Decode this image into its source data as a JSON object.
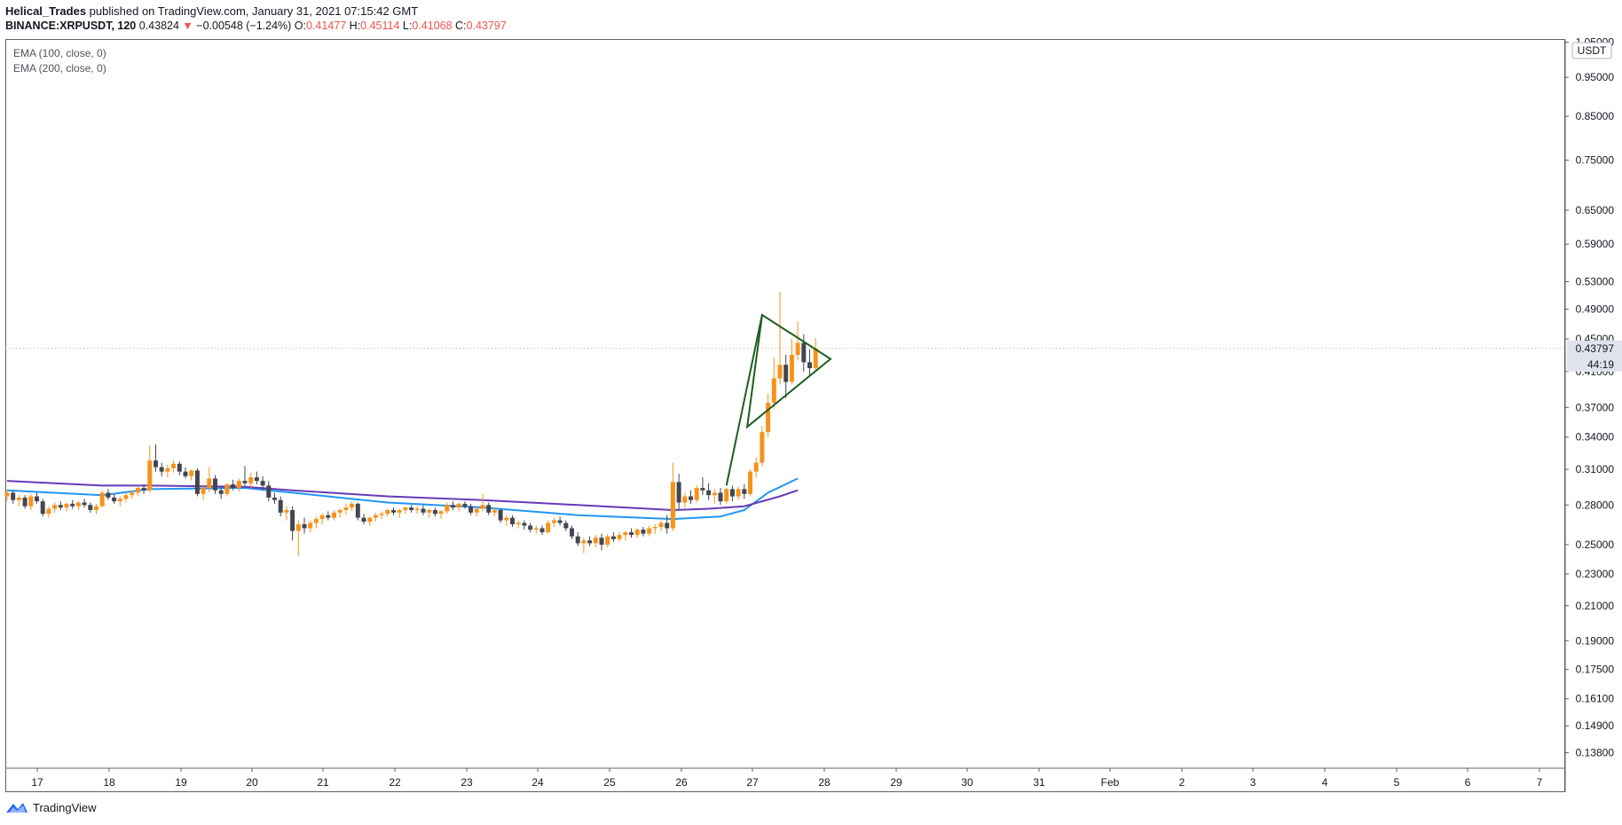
{
  "header": {
    "author": "Helical_Trades",
    "published": " published on TradingView.com, January 31, 2021 07:15:42 GMT",
    "symbol": "BINANCE:XRPUSDT, 120",
    "last": "0.43824",
    "arrow": "▼",
    "change": "−0.00548 (−1.24%)",
    "o_label": "O:",
    "o": "0.41477",
    "h_label": "H:",
    "h": "0.45114",
    "l_label": "L:",
    "l": "0.41068",
    "c_label": "C:",
    "c": "0.43797"
  },
  "legend": [
    "EMA (100, close, 0)",
    "EMA (200, close, 0)"
  ],
  "currency_label": "USDT",
  "last_price_label": "0.43797",
  "countdown_label": "44:19",
  "footer": {
    "brand": "TradingView",
    "logo_icon": "tradingview-logo-icon"
  },
  "colors": {
    "up": "#f7931a",
    "down": "#434651",
    "ema100": "#2196f3",
    "ema200": "#673ab7",
    "pattern": "#1b5e20",
    "down_text": "#ef5350"
  },
  "chart_data": {
    "type": "candlestick",
    "title": "",
    "ylabel": "USDT",
    "yscale": "log",
    "ylim": [
      0.132,
      1.06
    ],
    "y_ticks": [
      "1.05000",
      "0.95000",
      "0.85000",
      "0.75000",
      "0.65000",
      "0.59000",
      "0.53000",
      "0.49000",
      "0.45000",
      "0.41000",
      "0.37000",
      "0.34000",
      "0.31000",
      "0.28000",
      "0.25000",
      "0.23000",
      "0.21000",
      "0.19000",
      "0.17500",
      "0.16100",
      "0.14900",
      "0.13800"
    ],
    "x_ticks": [
      "17",
      "18",
      "19",
      "20",
      "21",
      "22",
      "23",
      "24",
      "25",
      "26",
      "27",
      "28",
      "29",
      "30",
      "31",
      "Feb",
      "2",
      "3",
      "4",
      "5",
      "6",
      "7"
    ],
    "interval_minutes": 120,
    "first_candle": "2021-01-16",
    "candles": [
      [
        0.287,
        0.293,
        0.283,
        0.29
      ],
      [
        0.29,
        0.292,
        0.281,
        0.284
      ],
      [
        0.284,
        0.288,
        0.279,
        0.286
      ],
      [
        0.286,
        0.288,
        0.277,
        0.279
      ],
      [
        0.279,
        0.289,
        0.276,
        0.287
      ],
      [
        0.287,
        0.29,
        0.281,
        0.283
      ],
      [
        0.283,
        0.285,
        0.271,
        0.273
      ],
      [
        0.273,
        0.279,
        0.27,
        0.277
      ],
      [
        0.277,
        0.282,
        0.274,
        0.28
      ],
      [
        0.28,
        0.283,
        0.276,
        0.278
      ],
      [
        0.278,
        0.282,
        0.275,
        0.281
      ],
      [
        0.281,
        0.284,
        0.277,
        0.279
      ],
      [
        0.279,
        0.283,
        0.276,
        0.282
      ],
      [
        0.282,
        0.285,
        0.278,
        0.28
      ],
      [
        0.28,
        0.282,
        0.274,
        0.276
      ],
      [
        0.276,
        0.281,
        0.273,
        0.279
      ],
      [
        0.279,
        0.292,
        0.278,
        0.29
      ],
      [
        0.29,
        0.293,
        0.284,
        0.286
      ],
      [
        0.286,
        0.289,
        0.281,
        0.283
      ],
      [
        0.283,
        0.287,
        0.279,
        0.285
      ],
      [
        0.285,
        0.29,
        0.282,
        0.288
      ],
      [
        0.288,
        0.292,
        0.285,
        0.29
      ],
      [
        0.29,
        0.296,
        0.287,
        0.294
      ],
      [
        0.294,
        0.297,
        0.289,
        0.292
      ],
      [
        0.292,
        0.332,
        0.29,
        0.318
      ],
      [
        0.318,
        0.333,
        0.308,
        0.312
      ],
      [
        0.312,
        0.316,
        0.304,
        0.308
      ],
      [
        0.308,
        0.314,
        0.303,
        0.311
      ],
      [
        0.311,
        0.318,
        0.307,
        0.315
      ],
      [
        0.315,
        0.317,
        0.305,
        0.308
      ],
      [
        0.308,
        0.312,
        0.302,
        0.304
      ],
      [
        0.304,
        0.31,
        0.3,
        0.309
      ],
      [
        0.309,
        0.311,
        0.287,
        0.289
      ],
      [
        0.289,
        0.297,
        0.284,
        0.294
      ],
      [
        0.294,
        0.312,
        0.29,
        0.302
      ],
      [
        0.302,
        0.305,
        0.289,
        0.292
      ],
      [
        0.292,
        0.296,
        0.285,
        0.289
      ],
      [
        0.289,
        0.298,
        0.287,
        0.297
      ],
      [
        0.297,
        0.301,
        0.292,
        0.294
      ],
      [
        0.294,
        0.302,
        0.291,
        0.3
      ],
      [
        0.3,
        0.313,
        0.296,
        0.298
      ],
      [
        0.298,
        0.307,
        0.294,
        0.303
      ],
      [
        0.303,
        0.308,
        0.297,
        0.3
      ],
      [
        0.3,
        0.304,
        0.292,
        0.296
      ],
      [
        0.296,
        0.3,
        0.283,
        0.286
      ],
      [
        0.286,
        0.29,
        0.281,
        0.284
      ],
      [
        0.284,
        0.287,
        0.271,
        0.274
      ],
      [
        0.274,
        0.279,
        0.268,
        0.276
      ],
      [
        0.276,
        0.279,
        0.253,
        0.26
      ],
      [
        0.26,
        0.268,
        0.242,
        0.265
      ],
      [
        0.265,
        0.27,
        0.258,
        0.262
      ],
      [
        0.262,
        0.268,
        0.259,
        0.266
      ],
      [
        0.266,
        0.271,
        0.262,
        0.269
      ],
      [
        0.269,
        0.273,
        0.265,
        0.272
      ],
      [
        0.272,
        0.275,
        0.268,
        0.27
      ],
      [
        0.27,
        0.276,
        0.268,
        0.274
      ],
      [
        0.274,
        0.277,
        0.27,
        0.276
      ],
      [
        0.276,
        0.281,
        0.272,
        0.278
      ],
      [
        0.278,
        0.283,
        0.275,
        0.281
      ],
      [
        0.281,
        0.282,
        0.268,
        0.27
      ],
      [
        0.27,
        0.273,
        0.265,
        0.267
      ],
      [
        0.267,
        0.271,
        0.264,
        0.27
      ],
      [
        0.27,
        0.274,
        0.267,
        0.272
      ],
      [
        0.272,
        0.275,
        0.269,
        0.273
      ],
      [
        0.273,
        0.277,
        0.271,
        0.276
      ],
      [
        0.276,
        0.278,
        0.272,
        0.274
      ],
      [
        0.274,
        0.277,
        0.27,
        0.276
      ],
      [
        0.276,
        0.279,
        0.273,
        0.278
      ],
      [
        0.278,
        0.28,
        0.274,
        0.276
      ],
      [
        0.276,
        0.279,
        0.273,
        0.277
      ],
      [
        0.277,
        0.28,
        0.272,
        0.274
      ],
      [
        0.274,
        0.277,
        0.27,
        0.276
      ],
      [
        0.276,
        0.278,
        0.271,
        0.273
      ],
      [
        0.273,
        0.276,
        0.269,
        0.275
      ],
      [
        0.275,
        0.282,
        0.273,
        0.28
      ],
      [
        0.28,
        0.283,
        0.276,
        0.278
      ],
      [
        0.278,
        0.282,
        0.275,
        0.281
      ],
      [
        0.281,
        0.283,
        0.277,
        0.279
      ],
      [
        0.279,
        0.281,
        0.272,
        0.274
      ],
      [
        0.274,
        0.278,
        0.271,
        0.277
      ],
      [
        0.277,
        0.289,
        0.275,
        0.28
      ],
      [
        0.28,
        0.282,
        0.272,
        0.274
      ],
      [
        0.274,
        0.278,
        0.271,
        0.276
      ],
      [
        0.276,
        0.277,
        0.266,
        0.268
      ],
      [
        0.268,
        0.272,
        0.264,
        0.27
      ],
      [
        0.27,
        0.272,
        0.263,
        0.265
      ],
      [
        0.265,
        0.268,
        0.262,
        0.266
      ],
      [
        0.266,
        0.268,
        0.261,
        0.264
      ],
      [
        0.264,
        0.266,
        0.259,
        0.261
      ],
      [
        0.261,
        0.264,
        0.258,
        0.262
      ],
      [
        0.262,
        0.264,
        0.257,
        0.259
      ],
      [
        0.259,
        0.268,
        0.258,
        0.266
      ],
      [
        0.266,
        0.27,
        0.263,
        0.268
      ],
      [
        0.268,
        0.271,
        0.264,
        0.266
      ],
      [
        0.266,
        0.268,
        0.26,
        0.262
      ],
      [
        0.262,
        0.264,
        0.254,
        0.256
      ],
      [
        0.256,
        0.259,
        0.249,
        0.251
      ],
      [
        0.251,
        0.255,
        0.244,
        0.253
      ],
      [
        0.253,
        0.256,
        0.249,
        0.251
      ],
      [
        0.251,
        0.257,
        0.248,
        0.255
      ],
      [
        0.255,
        0.258,
        0.246,
        0.25
      ],
      [
        0.25,
        0.258,
        0.248,
        0.256
      ],
      [
        0.256,
        0.259,
        0.252,
        0.254
      ],
      [
        0.254,
        0.259,
        0.252,
        0.257
      ],
      [
        0.257,
        0.26,
        0.253,
        0.259
      ],
      [
        0.259,
        0.262,
        0.255,
        0.257
      ],
      [
        0.257,
        0.262,
        0.255,
        0.261
      ],
      [
        0.261,
        0.263,
        0.256,
        0.258
      ],
      [
        0.258,
        0.264,
        0.256,
        0.262
      ],
      [
        0.262,
        0.265,
        0.258,
        0.263
      ],
      [
        0.263,
        0.268,
        0.26,
        0.266
      ],
      [
        0.266,
        0.272,
        0.258,
        0.262
      ],
      [
        0.262,
        0.316,
        0.26,
        0.299
      ],
      [
        0.299,
        0.306,
        0.276,
        0.282
      ],
      [
        0.282,
        0.29,
        0.278,
        0.287
      ],
      [
        0.287,
        0.292,
        0.281,
        0.284
      ],
      [
        0.284,
        0.296,
        0.282,
        0.294
      ],
      [
        0.294,
        0.303,
        0.288,
        0.292
      ],
      [
        0.292,
        0.298,
        0.284,
        0.288
      ],
      [
        0.288,
        0.293,
        0.281,
        0.29
      ],
      [
        0.29,
        0.294,
        0.28,
        0.283
      ],
      [
        0.283,
        0.294,
        0.281,
        0.293
      ],
      [
        0.293,
        0.296,
        0.283,
        0.287
      ],
      [
        0.287,
        0.295,
        0.284,
        0.293
      ],
      [
        0.293,
        0.297,
        0.285,
        0.289
      ],
      [
        0.289,
        0.31,
        0.287,
        0.308
      ],
      [
        0.308,
        0.321,
        0.303,
        0.316
      ],
      [
        0.316,
        0.351,
        0.313,
        0.345
      ],
      [
        0.345,
        0.385,
        0.34,
        0.375
      ],
      [
        0.375,
        0.427,
        0.368,
        0.402
      ],
      [
        0.402,
        0.515,
        0.395,
        0.418
      ],
      [
        0.418,
        0.43,
        0.38,
        0.398
      ],
      [
        0.398,
        0.45,
        0.395,
        0.43
      ],
      [
        0.43,
        0.473,
        0.423,
        0.445
      ],
      [
        0.445,
        0.456,
        0.41,
        0.421
      ],
      [
        0.421,
        0.437,
        0.405,
        0.414
      ],
      [
        0.414,
        0.451,
        0.41,
        0.438
      ]
    ],
    "series": [
      {
        "name": "EMA (100, close, 0)",
        "points": [
          [
            0,
            0.292
          ],
          [
            16,
            0.288
          ],
          [
            24,
            0.293
          ],
          [
            40,
            0.294
          ],
          [
            48,
            0.29
          ],
          [
            64,
            0.282
          ],
          [
            80,
            0.278
          ],
          [
            96,
            0.272
          ],
          [
            112,
            0.269
          ],
          [
            120,
            0.271
          ],
          [
            124,
            0.276
          ],
          [
            128,
            0.29
          ],
          [
            133,
            0.302
          ]
        ]
      },
      {
        "name": "EMA (200, close, 0)",
        "points": [
          [
            0,
            0.3
          ],
          [
            16,
            0.296
          ],
          [
            24,
            0.296
          ],
          [
            40,
            0.295
          ],
          [
            48,
            0.292
          ],
          [
            64,
            0.287
          ],
          [
            80,
            0.284
          ],
          [
            96,
            0.28
          ],
          [
            112,
            0.276
          ],
          [
            118,
            0.277
          ],
          [
            124,
            0.279
          ],
          [
            130,
            0.287
          ],
          [
            133,
            0.292
          ]
        ]
      }
    ],
    "pattern": [
      [
        127.0,
        0.482
      ],
      [
        138.5,
        0.425
      ],
      [
        124.5,
        0.35
      ]
    ]
  }
}
